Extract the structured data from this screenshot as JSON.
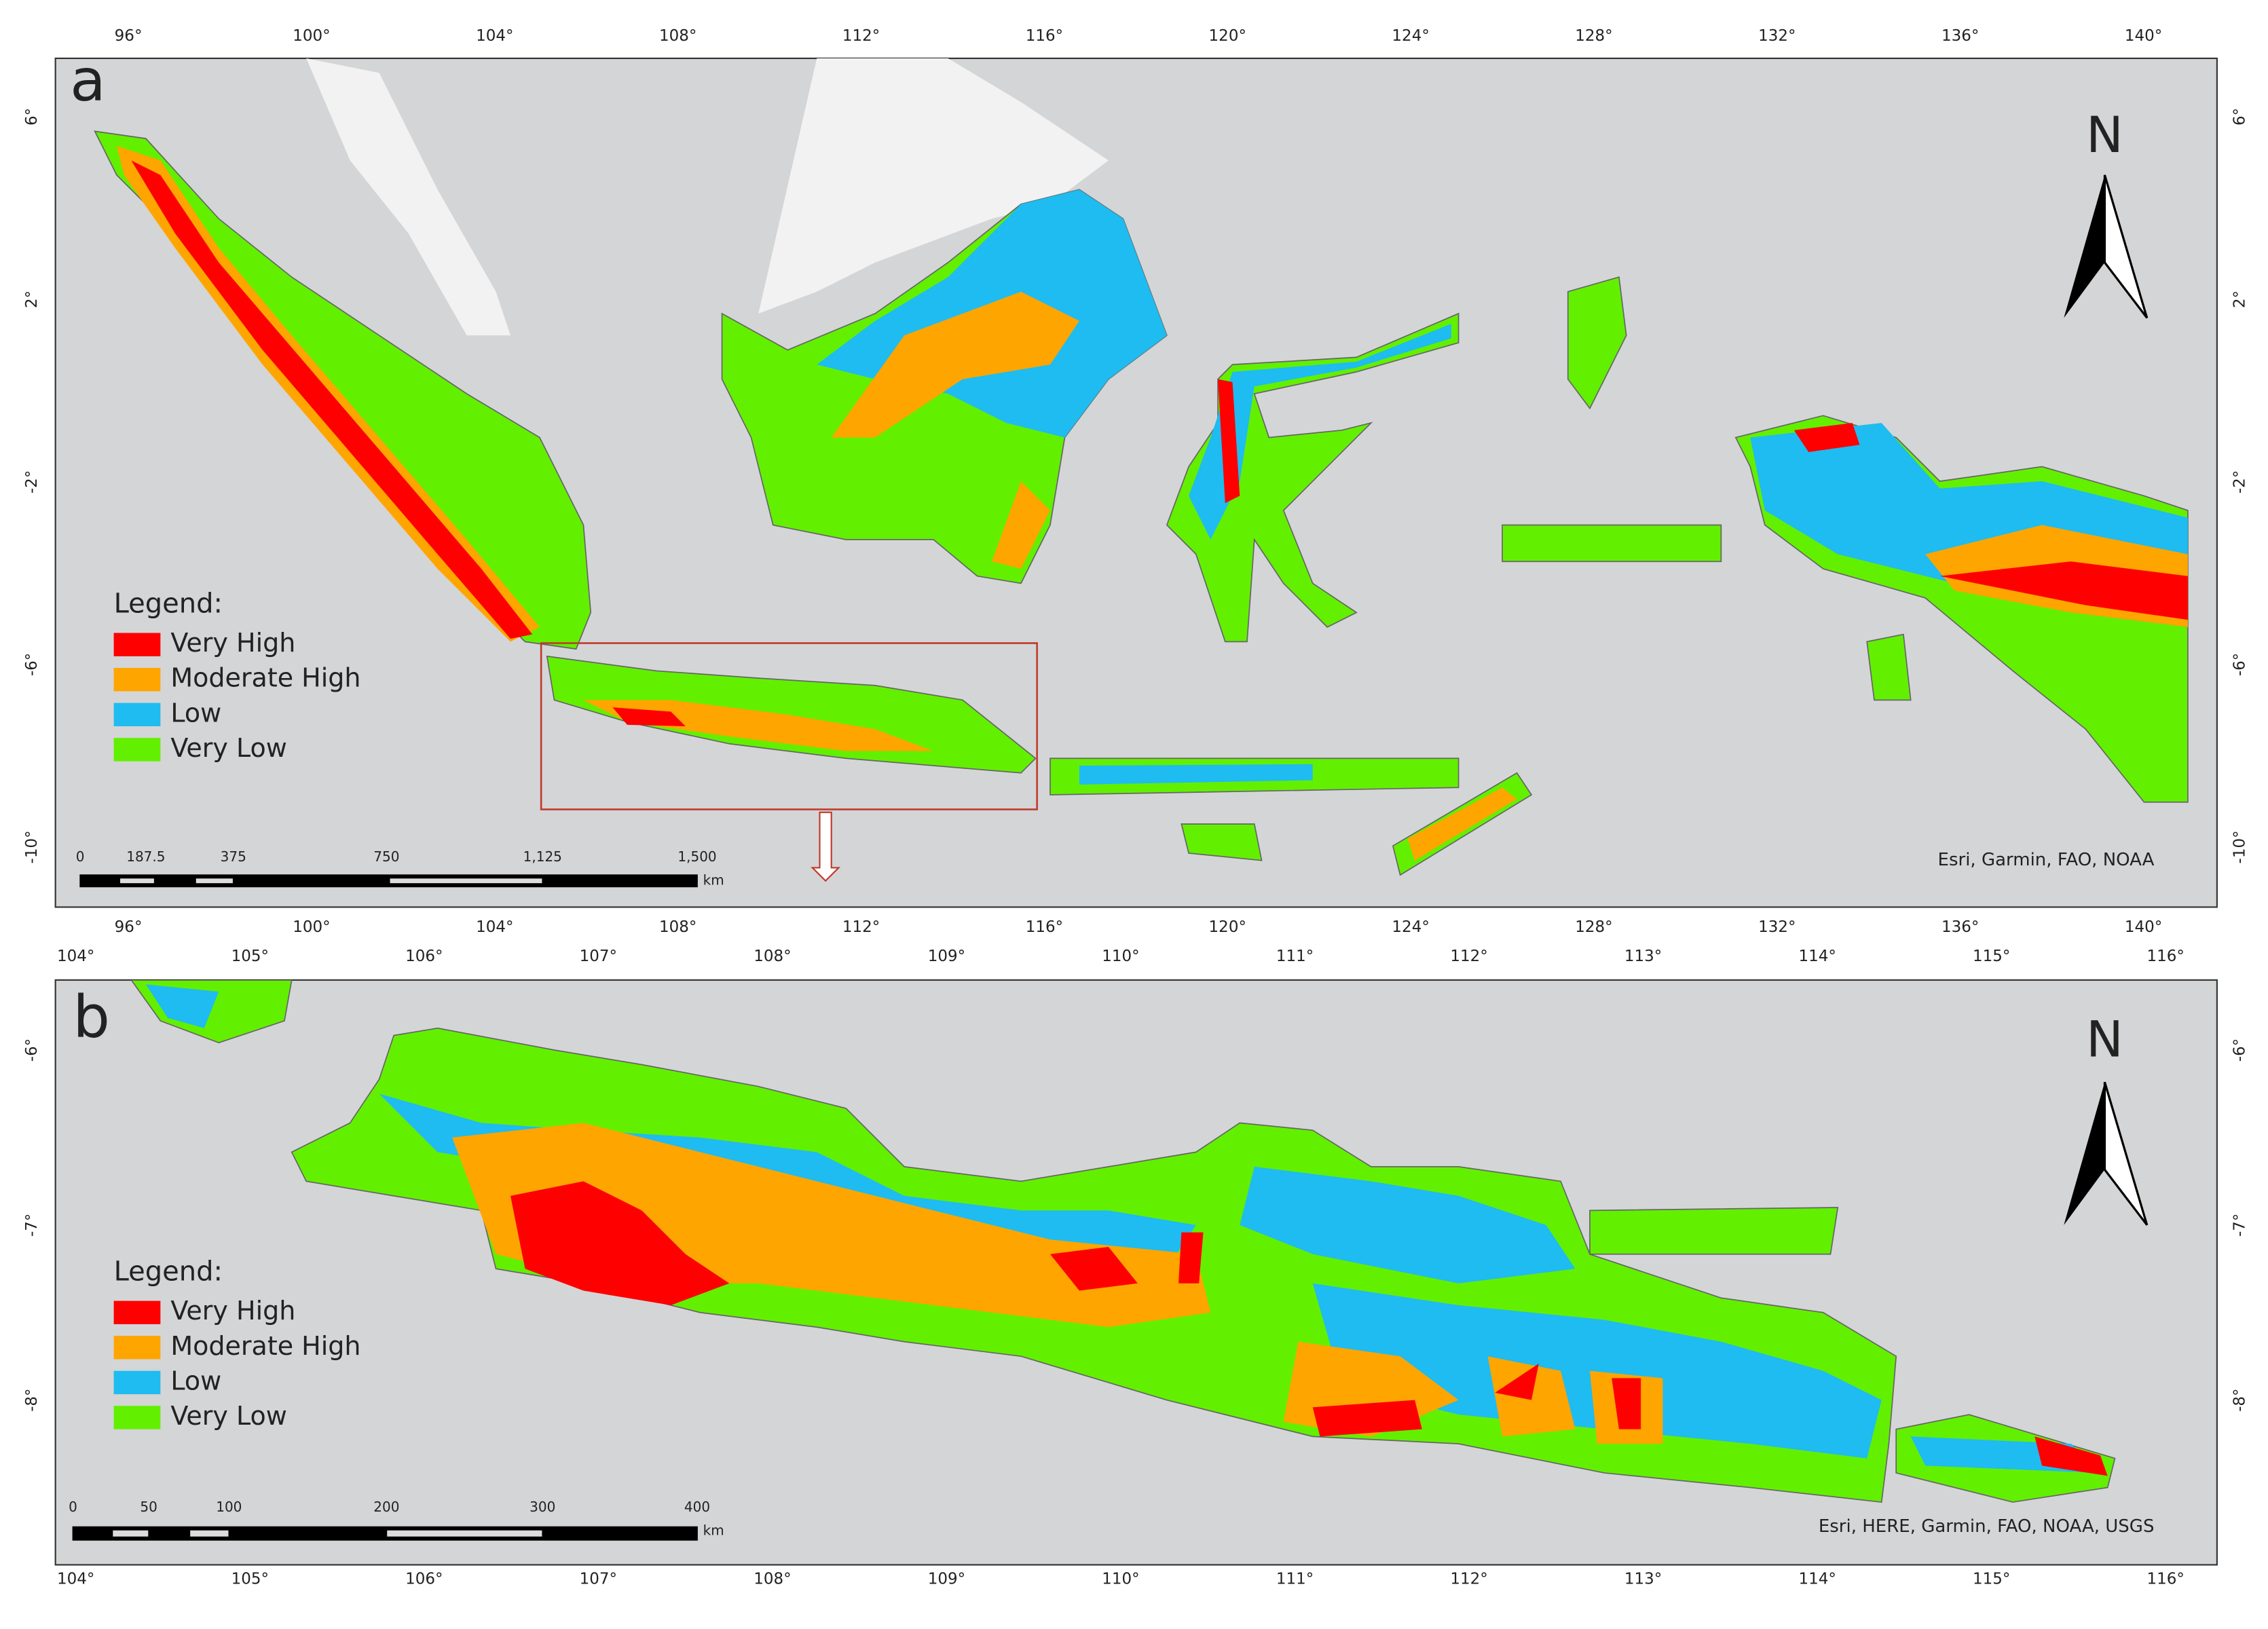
{
  "panel_a": {
    "label": "a",
    "north": "N",
    "lon_ticks": [
      "96°",
      "100°",
      "104°",
      "108°",
      "112°",
      "116°",
      "120°",
      "124°",
      "128°",
      "132°",
      "136°",
      "140°"
    ],
    "lat_ticks": [
      "6°",
      "2°",
      "-2°",
      "-6°",
      "-10°"
    ],
    "legend": {
      "title": "Legend:",
      "items": [
        {
          "name": "Very High",
          "color": "#ff0000"
        },
        {
          "name": "Moderate High",
          "color": "#ffa500"
        },
        {
          "name": "Low",
          "color": "#1ebcf0"
        },
        {
          "name": "Very Low",
          "color": "#62f000"
        }
      ]
    },
    "scale_bar": {
      "labels": [
        "0",
        "187.5",
        "375",
        "750",
        "1,125",
        "1,500"
      ],
      "unit": "km"
    },
    "attribution": "Esri, Garmin, FAO, NOAA"
  },
  "panel_b": {
    "label": "b",
    "north": "N",
    "lon_ticks": [
      "104°",
      "105°",
      "106°",
      "107°",
      "108°",
      "109°",
      "110°",
      "111°",
      "112°",
      "113°",
      "114°",
      "115°",
      "116°"
    ],
    "lat_ticks": [
      "-6°",
      "-7°",
      "-8°"
    ],
    "legend": {
      "title": "Legend:",
      "items": [
        {
          "name": "Very High",
          "color": "#ff0000"
        },
        {
          "name": "Moderate High",
          "color": "#ffa500"
        },
        {
          "name": "Low",
          "color": "#1ebcf0"
        },
        {
          "name": "Very Low",
          "color": "#62f000"
        }
      ]
    },
    "scale_bar": {
      "labels": [
        "0",
        "50",
        "100",
        "200",
        "300",
        "400"
      ],
      "unit": "km"
    },
    "attribution": "Esri, HERE, Garmin, FAO, NOAA, USGS"
  }
}
